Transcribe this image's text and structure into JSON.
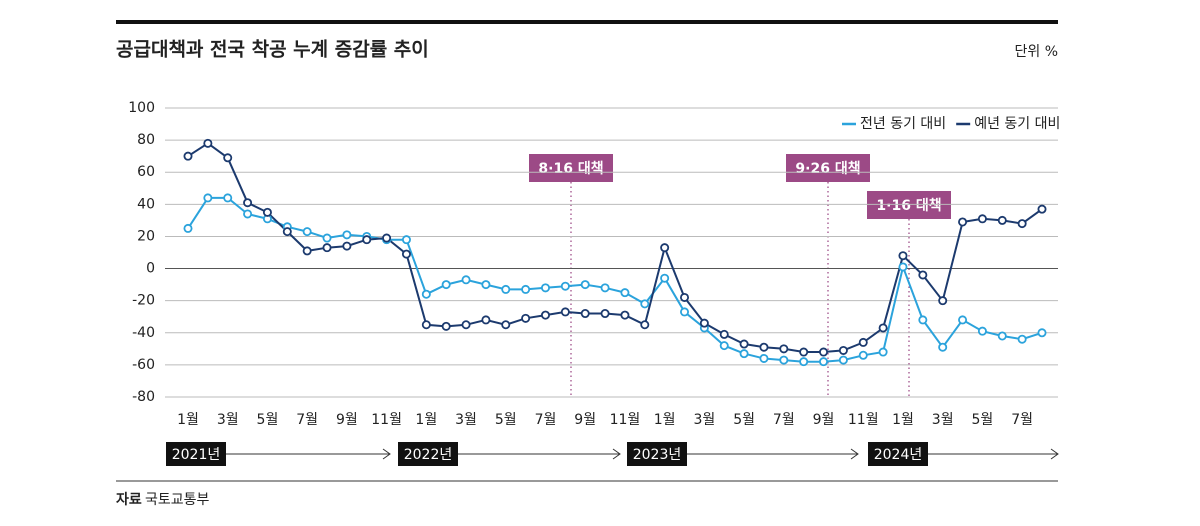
{
  "chart_data": {
    "type": "line",
    "title": "공급대책과 전국 착공 누계 증감률 추이",
    "unit": "단위 %",
    "source_label": "자료",
    "source": "국토교통부",
    "categories": [
      "1월",
      null,
      "3월",
      null,
      "5월",
      null,
      "7월",
      null,
      "9월",
      null,
      "11월",
      null,
      "1월",
      null,
      "3월",
      null,
      "5월",
      null,
      "7월",
      null,
      "9월",
      null,
      "11월",
      null,
      "1월",
      null,
      "3월",
      null,
      "5월",
      null,
      "7월",
      null,
      "9월",
      null,
      "11월",
      null,
      "1월",
      null,
      "3월",
      null,
      "5월",
      null,
      "7월",
      null
    ],
    "years": [
      "2021년",
      "2022년",
      "2023년",
      "2024년"
    ],
    "annotations": [
      "8·16 대책",
      "9·26 대책",
      "1·16 대책"
    ],
    "ylim": [
      -80,
      100
    ],
    "yticks": [
      100,
      80,
      60,
      40,
      20,
      0,
      -20,
      -40,
      -60,
      -80
    ],
    "grid": true,
    "series": [
      {
        "name": "전년 동기 대비",
        "color": "#2ba3dc",
        "values": [
          25,
          44,
          44,
          34,
          31,
          26,
          23,
          19,
          21,
          20,
          18,
          18,
          -16,
          -10,
          -7,
          -10,
          -13,
          -13,
          -12,
          -11,
          -10,
          -12,
          -15,
          -22,
          -6,
          -27,
          -37,
          -48,
          -53,
          -56,
          -57,
          -58,
          -58,
          -57,
          -54,
          -52,
          1,
          -32,
          -49,
          -32,
          -39,
          -42,
          -44,
          -40
        ]
      },
      {
        "name": "예년 동기 대비",
        "color": "#1c3a6e",
        "values": [
          70,
          78,
          69,
          41,
          35,
          23,
          11,
          13,
          14,
          18,
          19,
          9,
          -35,
          -36,
          -35,
          -32,
          -35,
          -31,
          -29,
          -27,
          -28,
          -28,
          -29,
          -35,
          13,
          -18,
          -34,
          -41,
          -47,
          -49,
          -50,
          -52,
          -52,
          -51,
          -46,
          -37,
          8,
          -4,
          -20,
          29,
          31,
          30,
          28,
          37
        ]
      }
    ]
  }
}
